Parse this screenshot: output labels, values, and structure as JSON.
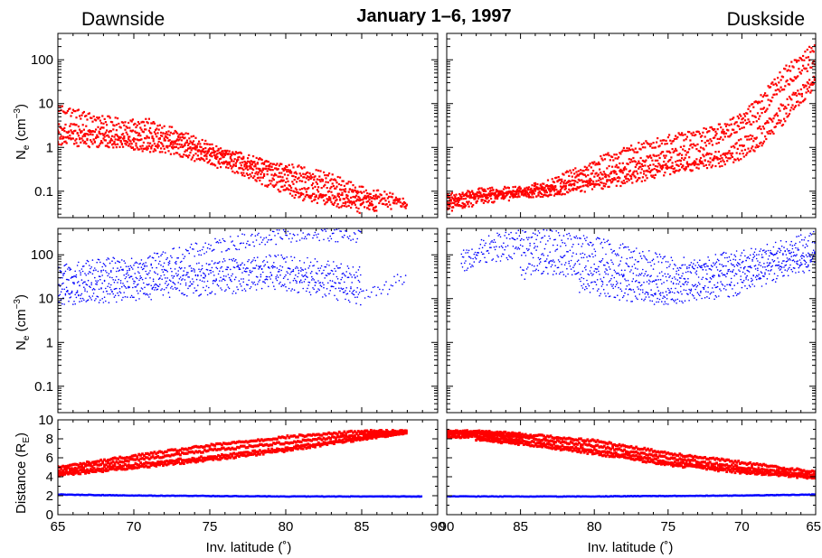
{
  "title": "January 1–6, 1997",
  "side_labels": {
    "left": "Dawnside",
    "right": "Duskside"
  },
  "colors": {
    "red": "#ff0000",
    "blue": "#0000ff",
    "axis": "#000000"
  },
  "axes": {
    "ne_label_base": "N",
    "ne_label_sub": "e",
    "ne_label_unit_open": " (cm",
    "ne_label_unit_exp": "−3",
    "ne_label_unit_close": ")",
    "dist_label_base": "Distance (R",
    "dist_label_sub": "E",
    "dist_label_close": ")",
    "xlabel": "Inv. latitude (˚)"
  },
  "chart_data": [
    {
      "type": "scatter",
      "panel": "top-left",
      "side": "Dawnside",
      "yscale": "log",
      "ylim": [
        0.025,
        400
      ],
      "xlim": [
        65,
        90
      ],
      "yticks": [
        "0.1",
        "1",
        "10",
        "100"
      ],
      "series": [
        {
          "color": "#ff0000",
          "x": [
            65,
            67,
            69,
            71,
            73,
            75,
            77,
            79,
            81,
            83,
            85,
            87,
            88
          ],
          "y": [
            8,
            5,
            3.6,
            3.5,
            2,
            1,
            0.6,
            0.4,
            0.3,
            0.2,
            0.1,
            0.07,
            0.05
          ]
        },
        {
          "color": "#ff0000",
          "x": [
            65,
            67,
            69,
            71,
            73,
            75,
            77,
            79,
            81,
            83,
            85,
            87
          ],
          "y": [
            3,
            2.5,
            2,
            2,
            1.5,
            0.8,
            0.5,
            0.3,
            0.2,
            0.12,
            0.08,
            0.05
          ]
        },
        {
          "color": "#ff0000",
          "x": [
            65,
            67,
            69,
            71,
            73,
            75,
            77,
            79,
            81,
            83,
            85,
            86
          ],
          "y": [
            2,
            1.8,
            1.5,
            1.3,
            1.2,
            0.7,
            0.4,
            0.25,
            0.1,
            0.08,
            0.06,
            0.04
          ]
        },
        {
          "color": "#ff0000",
          "x": [
            65,
            67,
            69,
            71,
            73,
            75,
            77,
            79,
            81,
            83,
            85
          ],
          "y": [
            1.5,
            1.3,
            1.2,
            1.0,
            0.8,
            0.5,
            0.3,
            0.15,
            0.08,
            0.06,
            0.04
          ]
        }
      ]
    },
    {
      "type": "scatter",
      "panel": "top-right",
      "side": "Duskside",
      "yscale": "log",
      "ylim": [
        0.025,
        400
      ],
      "xlim": [
        90,
        65
      ],
      "series": [
        {
          "color": "#ff0000",
          "x": [
            91,
            89,
            87,
            85,
            83,
            81,
            79,
            77,
            75,
            73,
            71,
            69,
            67,
            65
          ],
          "y": [
            0.06,
            0.08,
            0.1,
            0.1,
            0.15,
            0.3,
            0.6,
            1.0,
            1.5,
            2.0,
            3.0,
            10,
            60,
            200
          ]
        },
        {
          "color": "#ff0000",
          "x": [
            91,
            89,
            87,
            85,
            83,
            81,
            79,
            77,
            75,
            73,
            71,
            69,
            67,
            65
          ],
          "y": [
            0.05,
            0.07,
            0.09,
            0.1,
            0.12,
            0.2,
            0.3,
            0.5,
            0.7,
            1.0,
            2.0,
            5,
            30,
            100
          ]
        },
        {
          "color": "#ff0000",
          "x": [
            91,
            89,
            87,
            85,
            83,
            81,
            79,
            77,
            75,
            73,
            71,
            69,
            67,
            65
          ],
          "y": [
            0.04,
            0.06,
            0.08,
            0.09,
            0.1,
            0.15,
            0.2,
            0.3,
            0.4,
            0.5,
            0.8,
            2,
            10,
            40
          ]
        },
        {
          "color": "#ff0000",
          "x": [
            91,
            89,
            87,
            85,
            83,
            81,
            79,
            77,
            75,
            73,
            71,
            69,
            67,
            65
          ],
          "y": [
            0.03,
            0.05,
            0.07,
            0.08,
            0.1,
            0.12,
            0.15,
            0.2,
            0.3,
            0.4,
            0.5,
            1.0,
            5,
            30
          ]
        }
      ]
    },
    {
      "type": "scatter",
      "panel": "middle-left",
      "side": "Dawnside",
      "yscale": "log",
      "ylim": [
        0.025,
        400
      ],
      "xlim": [
        65,
        90
      ],
      "yticks": [
        "0.1",
        "1",
        "10",
        "100"
      ],
      "series": [
        {
          "color": "#0000ff",
          "x": [
            65,
            67,
            69,
            71,
            73,
            75,
            77,
            79,
            81,
            83,
            85
          ],
          "y": [
            40,
            50,
            60,
            80,
            100,
            150,
            200,
            250,
            300,
            300,
            280
          ]
        },
        {
          "color": "#0000ff",
          "x": [
            65,
            67,
            69,
            71,
            73,
            75,
            77,
            79,
            81,
            83,
            85
          ],
          "y": [
            30,
            30,
            35,
            40,
            45,
            50,
            60,
            70,
            60,
            50,
            40
          ]
        },
        {
          "color": "#0000ff",
          "x": [
            65,
            67,
            69,
            71,
            73,
            75,
            77,
            79,
            81,
            83,
            85
          ],
          "y": [
            15,
            18,
            20,
            25,
            30,
            35,
            40,
            40,
            30,
            25,
            20
          ]
        },
        {
          "color": "#0000ff",
          "x": [
            65,
            67,
            69,
            71,
            73,
            75,
            77,
            79,
            81,
            83,
            85,
            88
          ],
          "y": [
            10,
            11,
            12,
            14,
            16,
            18,
            20,
            25,
            20,
            15,
            10,
            30
          ]
        }
      ]
    },
    {
      "type": "scatter",
      "panel": "middle-right",
      "side": "Duskside",
      "yscale": "log",
      "ylim": [
        0.025,
        400
      ],
      "xlim": [
        90,
        65
      ],
      "series": [
        {
          "color": "#0000ff",
          "x": [
            89,
            87,
            85,
            83,
            81,
            79,
            77,
            75,
            73,
            71,
            69,
            67,
            65
          ],
          "y": [
            80,
            200,
            250,
            250,
            200,
            150,
            100,
            60,
            60,
            80,
            100,
            150,
            250
          ]
        },
        {
          "color": "#0000ff",
          "x": [
            89,
            87,
            85,
            83,
            81,
            79,
            77,
            75,
            73,
            71,
            69,
            67,
            65
          ],
          "y": [
            60,
            100,
            120,
            100,
            80,
            60,
            40,
            30,
            40,
            50,
            70,
            90,
            120
          ]
        },
        {
          "color": "#0000ff",
          "x": [
            85,
            83,
            81,
            79,
            77,
            75,
            73,
            71,
            69,
            67,
            65
          ],
          "y": [
            40,
            50,
            40,
            30,
            20,
            15,
            20,
            30,
            40,
            60,
            90
          ]
        },
        {
          "color": "#0000ff",
          "x": [
            81,
            79,
            77,
            75,
            73,
            71,
            69,
            67,
            65
          ],
          "y": [
            20,
            15,
            12,
            10,
            12,
            15,
            25,
            40,
            70
          ]
        }
      ]
    },
    {
      "type": "scatter",
      "panel": "bottom-left",
      "side": "Dawnside",
      "yscale": "linear",
      "ylim": [
        0,
        10
      ],
      "xlim": [
        65,
        90
      ],
      "yticks": [
        "0",
        "2",
        "4",
        "6",
        "8",
        "10"
      ],
      "xticks": [
        "65",
        "70",
        "75",
        "80",
        "85",
        "90"
      ],
      "series": [
        {
          "color": "#ff0000",
          "x": [
            65,
            70,
            75,
            80,
            85,
            88
          ],
          "y": [
            5.0,
            6.2,
            7.3,
            8.2,
            8.8,
            8.8
          ]
        },
        {
          "color": "#ff0000",
          "x": [
            65,
            70,
            75,
            80,
            85,
            88
          ],
          "y": [
            4.7,
            5.8,
            6.8,
            7.6,
            8.5,
            8.8
          ]
        },
        {
          "color": "#ff0000",
          "x": [
            65,
            70,
            75,
            80,
            85,
            88
          ],
          "y": [
            4.4,
            5.3,
            6.1,
            7.0,
            8.2,
            8.7
          ]
        },
        {
          "color": "#ff0000",
          "x": [
            65,
            70,
            75,
            80,
            85,
            88
          ],
          "y": [
            4.2,
            5.0,
            5.8,
            6.8,
            8.0,
            8.7
          ]
        },
        {
          "color": "#0000ff",
          "x": [
            65,
            70,
            75,
            80,
            85,
            89
          ],
          "y": [
            2.1,
            2.0,
            1.95,
            1.9,
            1.9,
            1.9
          ]
        }
      ]
    },
    {
      "type": "scatter",
      "panel": "bottom-right",
      "side": "Duskside",
      "yscale": "linear",
      "ylim": [
        0,
        10
      ],
      "xlim": [
        90,
        65
      ],
      "xticks": [
        "90",
        "85",
        "80",
        "75",
        "70",
        "65"
      ],
      "series": [
        {
          "color": "#ff0000",
          "x": [
            91,
            88,
            85,
            80,
            75,
            70,
            65
          ],
          "y": [
            8.8,
            8.8,
            8.5,
            7.8,
            6.5,
            5.5,
            4.5
          ]
        },
        {
          "color": "#ff0000",
          "x": [
            91,
            88,
            85,
            80,
            75,
            70,
            65
          ],
          "y": [
            8.5,
            8.6,
            8.2,
            7.3,
            6.0,
            5.0,
            4.2
          ]
        },
        {
          "color": "#ff0000",
          "x": [
            91,
            88,
            85,
            80,
            75,
            70,
            65
          ],
          "y": [
            8.2,
            8.3,
            7.8,
            6.8,
            5.6,
            4.7,
            4.0
          ]
        },
        {
          "color": "#ff0000",
          "x": [
            88,
            85,
            80,
            75,
            70,
            65
          ],
          "y": [
            8.0,
            7.5,
            6.5,
            5.3,
            4.5,
            3.9
          ]
        },
        {
          "color": "#0000ff",
          "x": [
            91,
            85,
            80,
            75,
            70,
            65
          ],
          "y": [
            1.9,
            1.9,
            1.9,
            1.95,
            2.0,
            2.1
          ]
        }
      ]
    }
  ]
}
